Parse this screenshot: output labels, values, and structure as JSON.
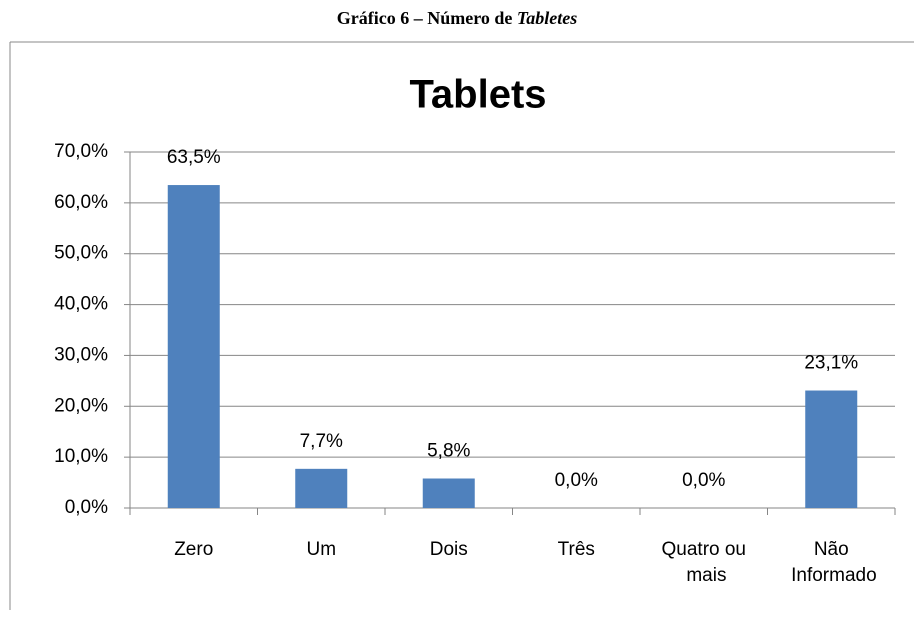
{
  "caption": {
    "text": "Gráfico  6 – Número de",
    "emphasis": "Tabletes"
  },
  "chart_data": {
    "type": "bar",
    "title": "Tablets",
    "categories": [
      "Zero",
      "Um",
      "Dois",
      "Três",
      "Quatro ou\nmais",
      "Não\nInformado"
    ],
    "values": [
      63.5,
      7.7,
      5.8,
      0,
      0,
      23.1
    ],
    "value_labels": [
      "63,5%",
      "7,7%",
      "5,8%",
      "0,0%",
      "0,0%",
      "23,1%"
    ],
    "color": "#4f81bd",
    "ylim": [
      0,
      70
    ],
    "yticks": [
      {
        "value": 0,
        "label": "0,0%"
      },
      {
        "value": 10,
        "label": "10,0%"
      },
      {
        "value": 20,
        "label": "20,0%"
      },
      {
        "value": 30,
        "label": "30,0%"
      },
      {
        "value": 40,
        "label": "40,0%"
      },
      {
        "value": 50,
        "label": "50,0%"
      },
      {
        "value": 60,
        "label": "60,0%"
      },
      {
        "value": 70,
        "label": "70,0%"
      }
    ],
    "grid": true
  }
}
